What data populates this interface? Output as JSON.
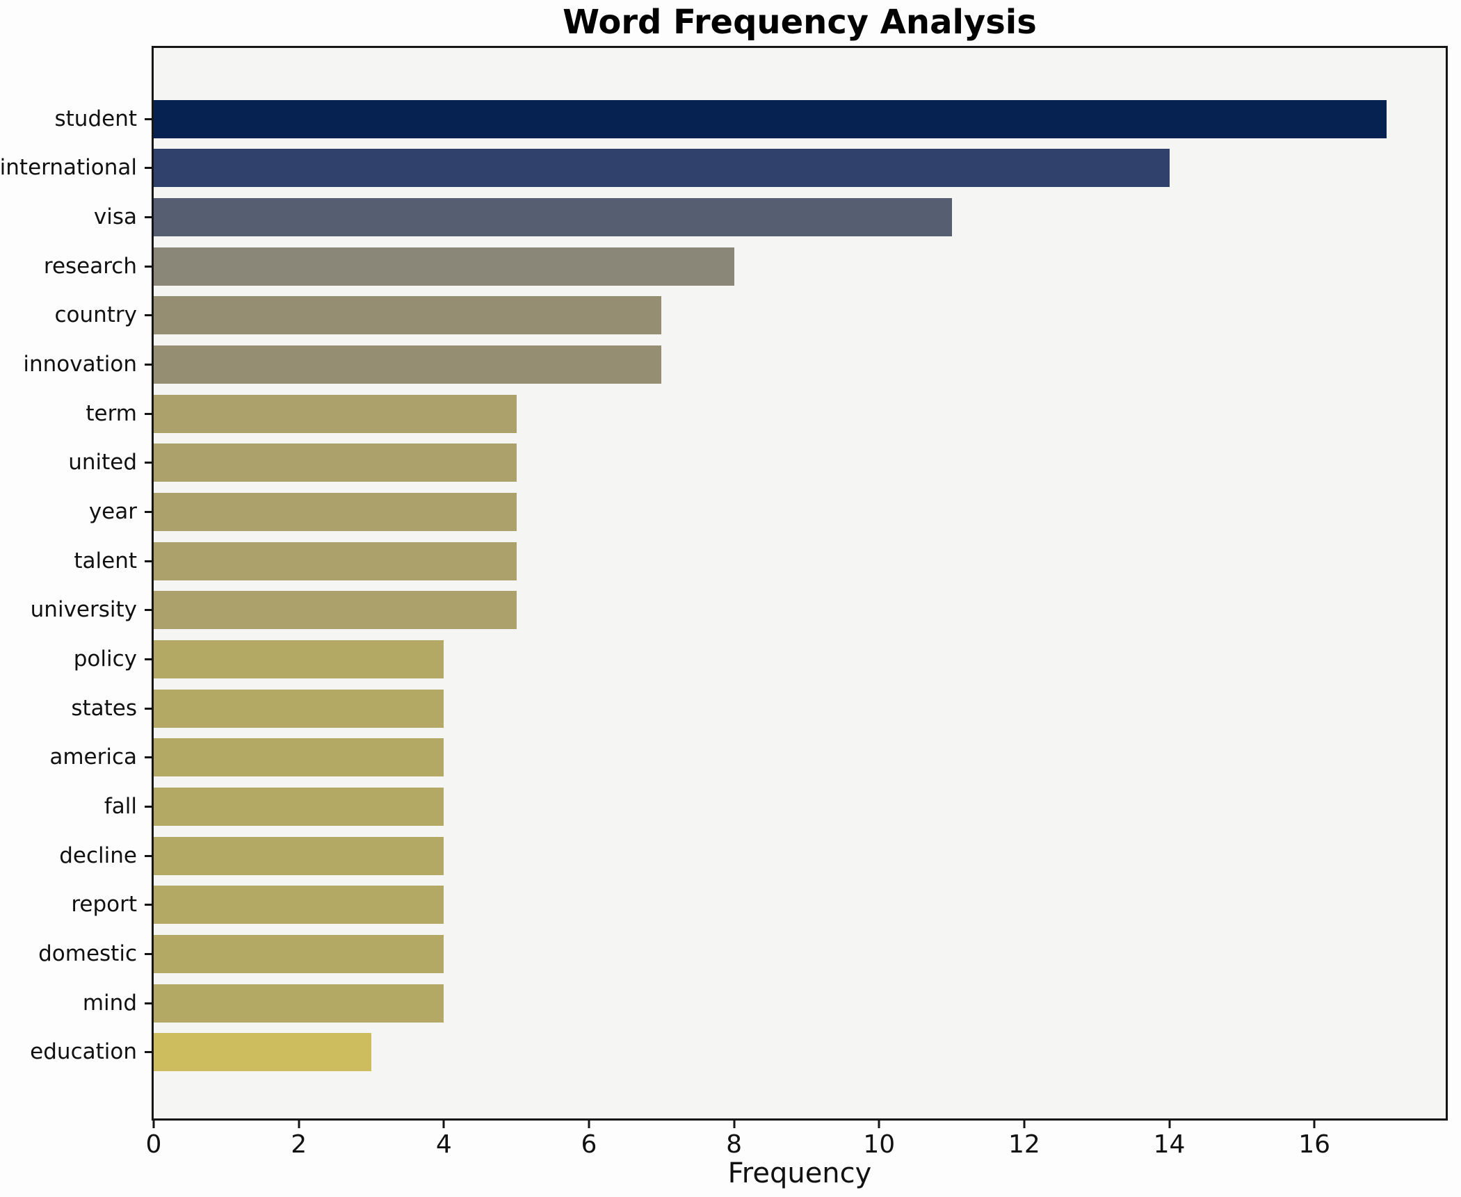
{
  "chart_data": {
    "type": "bar",
    "orientation": "horizontal",
    "title": "Word Frequency Analysis",
    "xlabel": "Frequency",
    "ylabel": "",
    "categories": [
      "student",
      "international",
      "visa",
      "research",
      "country",
      "innovation",
      "term",
      "united",
      "year",
      "talent",
      "university",
      "policy",
      "states",
      "america",
      "fall",
      "decline",
      "report",
      "domestic",
      "mind",
      "education"
    ],
    "values": [
      17,
      14,
      11,
      8,
      7,
      7,
      5,
      5,
      5,
      5,
      5,
      4,
      4,
      4,
      4,
      4,
      4,
      4,
      4,
      3
    ],
    "bar_colors": [
      "#062250",
      "#30426b",
      "#565f71",
      "#8a8678",
      "#958e72",
      "#958e72",
      "#aca06b",
      "#aca06b",
      "#aca06b",
      "#aca06b",
      "#aca06b",
      "#b4a865",
      "#b4a865",
      "#b4a865",
      "#b4a865",
      "#b4a865",
      "#b4a865",
      "#b4a865",
      "#b4a865",
      "#cdbd5e"
    ],
    "xlim": [
      0,
      17.81
    ],
    "xticks": [
      0,
      2,
      4,
      6,
      8,
      10,
      12,
      14,
      16
    ],
    "xtick_labels": [
      "0",
      "2",
      "4",
      "6",
      "8",
      "10",
      "12",
      "14",
      "16"
    ],
    "grid": false,
    "legend": false,
    "colormap": "cividis-reversed",
    "plot_background": "#f5f5f3",
    "figure_background": "#fdfdfd",
    "spine_color": "#151515"
  }
}
